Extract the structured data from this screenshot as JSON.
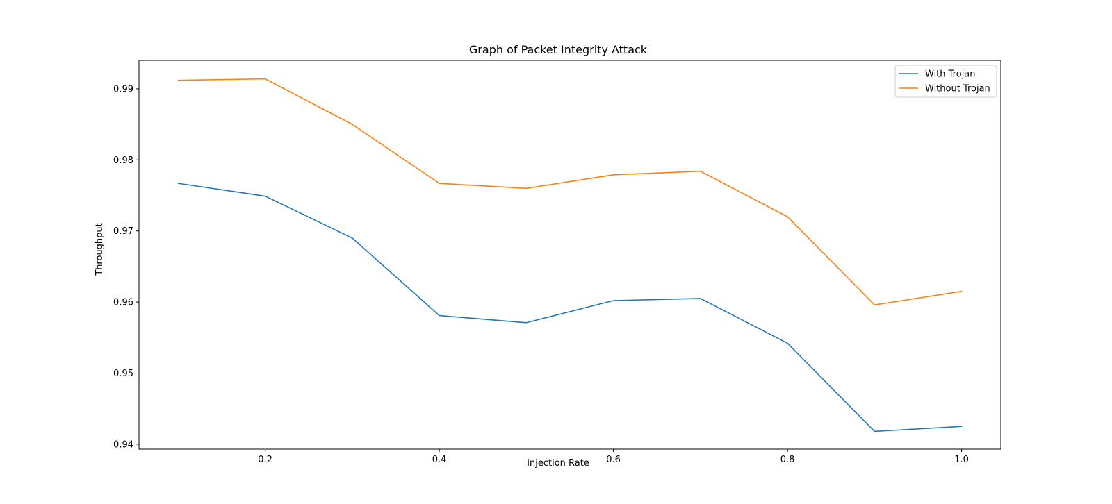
{
  "chart_data": {
    "type": "line",
    "title": "Graph of Packet Integrity Attack",
    "xlabel": "Injection Rate",
    "ylabel": "Throughput",
    "x": [
      0.1,
      0.2,
      0.3,
      0.4,
      0.5,
      0.6,
      0.7,
      0.8,
      0.9,
      1.0
    ],
    "xlim": [
      0.055,
      1.045
    ],
    "ylim": [
      0.9393,
      0.994
    ],
    "xticks": [
      0.2,
      0.4,
      0.6,
      0.8,
      1.0
    ],
    "xtick_labels": [
      "0.2",
      "0.4",
      "0.6",
      "0.8",
      "1.0"
    ],
    "yticks": [
      0.94,
      0.95,
      0.96,
      0.97,
      0.98,
      0.99
    ],
    "ytick_labels": [
      "0.94",
      "0.95",
      "0.96",
      "0.97",
      "0.98",
      "0.99"
    ],
    "grid": false,
    "legend_position": "top-right",
    "series": [
      {
        "name": "With Trojan",
        "color": "#1f77b4",
        "values": [
          0.9767,
          0.9749,
          0.969,
          0.9581,
          0.9571,
          0.9602,
          0.9605,
          0.9542,
          0.9418,
          0.9425
        ]
      },
      {
        "name": "Without Trojan",
        "color": "#ff7f0e",
        "values": [
          0.9912,
          0.9914,
          0.985,
          0.9767,
          0.976,
          0.9779,
          0.9784,
          0.972,
          0.9596,
          0.9615
        ]
      }
    ]
  }
}
